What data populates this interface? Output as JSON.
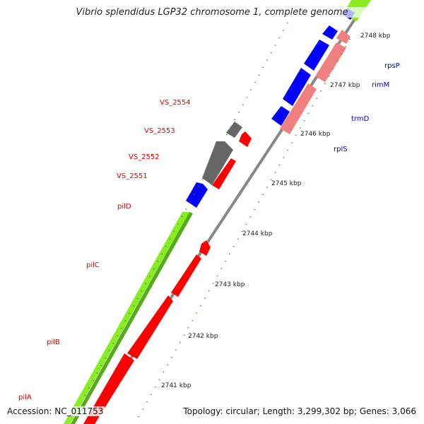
{
  "title": "Vibrio splendidus LGP32 chromosome 1, complete genome",
  "accession": "Accession: NC_011753",
  "summary": "Topology: circular; Length: 3,299,302 bp; Genes: 3,066",
  "colors": {
    "backbone": "#888888",
    "cds_red": "#ff0000",
    "cds_blue": "#0000ff",
    "cds_pink": "#f08080",
    "cds_gray": "#666666",
    "gc_green": "#88ee22",
    "tick_green": "#228822",
    "label_red": "#dd0000",
    "label_blue": "#0000cc"
  },
  "kbp_ticks": [
    {
      "label": "2741 kbp"
    },
    {
      "label": "2742 kbp"
    },
    {
      "label": "2743 kbp"
    },
    {
      "label": "2744 kbp"
    },
    {
      "label": "2745 kbp"
    },
    {
      "label": "2746 kbp"
    },
    {
      "label": "2747 kbp"
    },
    {
      "label": "2748 kbp"
    }
  ],
  "genes_left": [
    {
      "name": "pilA"
    },
    {
      "name": "pilB"
    },
    {
      "name": "pilC"
    },
    {
      "name": "pilD"
    },
    {
      "name": "VS_2551"
    },
    {
      "name": "VS_2552"
    },
    {
      "name": "VS_2553"
    },
    {
      "name": "VS_2554"
    }
  ],
  "genes_right": [
    {
      "name": "rplS"
    },
    {
      "name": "trmD"
    },
    {
      "name": "rimM"
    },
    {
      "name": "rpsP"
    }
  ]
}
